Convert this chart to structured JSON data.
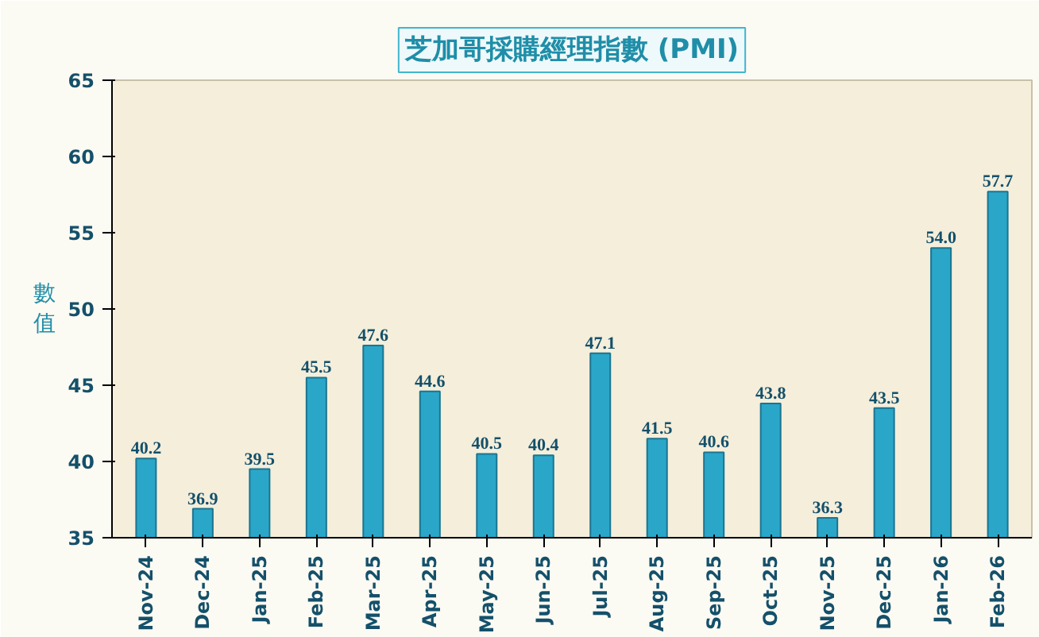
{
  "chart_data": {
    "type": "bar",
    "title": "芝加哥採購經理指數 (PMI)",
    "ylabel": "數值",
    "categories": [
      "Nov-24",
      "Dec-24",
      "Jan-25",
      "Feb-25",
      "Mar-25",
      "Apr-25",
      "May-25",
      "Jun-25",
      "Jul-25",
      "Aug-25",
      "Sep-25",
      "Oct-25",
      "Nov-25",
      "Dec-25",
      "Jan-26",
      "Feb-26"
    ],
    "values": [
      40.2,
      36.9,
      39.5,
      45.5,
      47.6,
      44.6,
      40.5,
      40.4,
      47.1,
      41.5,
      40.6,
      43.8,
      36.3,
      43.5,
      54.0,
      57.7
    ],
    "value_labels": [
      "40.2",
      "36.9",
      "39.5",
      "45.5",
      "47.6",
      "44.6",
      "40.5",
      "40.4",
      "47.1",
      "41.5",
      "40.6",
      "43.8",
      "36.3",
      "43.5",
      "54.0",
      "57.7"
    ],
    "color": "#2aa6c8",
    "ylim": [
      35,
      65
    ],
    "yticks": [
      35,
      40,
      45,
      50,
      55,
      60,
      65
    ],
    "grid": false
  }
}
